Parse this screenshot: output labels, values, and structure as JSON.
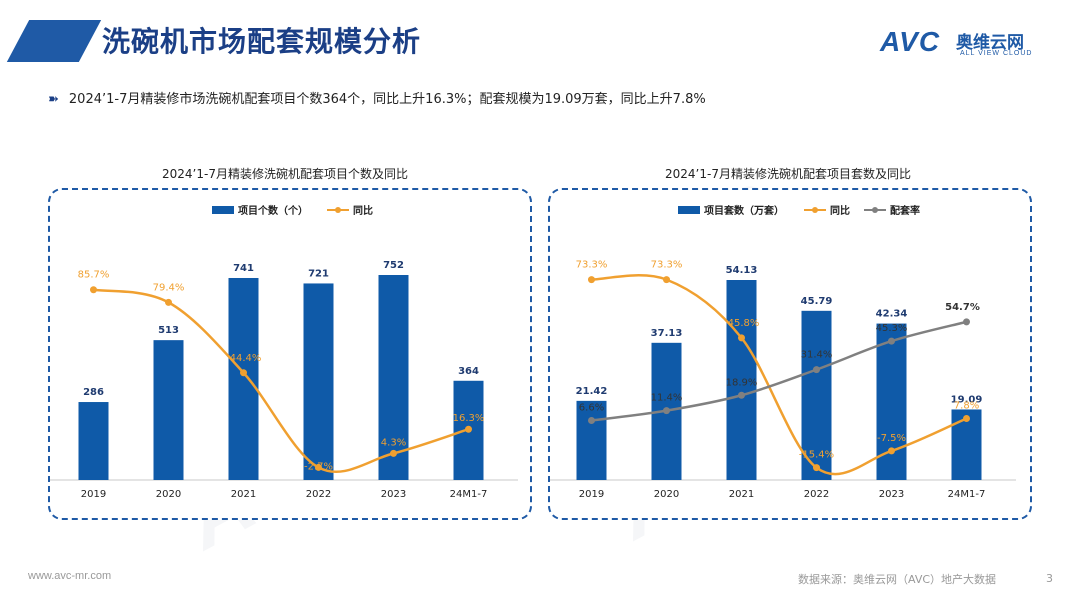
{
  "page": {
    "title": "洗碗机市场配套规模分析",
    "logo_main": "AVC",
    "logo_cn": "奥维云网",
    "logo_sub": "ALL VIEW CLOUD",
    "bullet": "2024’1-7月精装修市场洗碗机配套项目个数364个，同比上升16.3%；配套规模为19.09万套，同比上升7.8%",
    "footer_left": "www.avc-mr.com",
    "footer_source": "数据来源：奥维云网（AVC）地产大数据",
    "page_number": "3"
  },
  "colors": {
    "bar": "#0f5aa8",
    "yoy": "#f0a030",
    "rate": "#808080",
    "title": "#1b3f86"
  },
  "chart_data": [
    {
      "type": "bar",
      "title": "2024’1-7月精装修洗碗机配套项目个数及同比",
      "categories": [
        "2019",
        "2020",
        "2021",
        "2022",
        "2023",
        "24M1-7"
      ],
      "series": [
        {
          "name": "项目个数（个）",
          "type": "bar",
          "values": [
            286,
            513,
            741,
            721,
            752,
            364
          ],
          "labels": [
            "286",
            "513",
            "741",
            "721",
            "752",
            "364"
          ]
        },
        {
          "name": "同比",
          "type": "line",
          "values": [
            85.7,
            79.4,
            44.4,
            -2.7,
            4.3,
            16.3
          ],
          "labels": [
            "85.7%",
            "79.4%",
            "44.4%",
            "-2.7%",
            "4.3%",
            "16.3%"
          ]
        }
      ],
      "legend": "top"
    },
    {
      "type": "bar",
      "title": "2024’1-7月精装修洗碗机配套项目套数及同比",
      "categories": [
        "2019",
        "2020",
        "2021",
        "2022",
        "2023",
        "24M1-7"
      ],
      "series": [
        {
          "name": "项目套数（万套）",
          "type": "bar",
          "values": [
            21.42,
            37.13,
            54.13,
            45.79,
            42.34,
            19.09
          ],
          "labels": [
            "21.42",
            "37.13",
            "54.13",
            "45.79",
            "42.34",
            "19.09"
          ]
        },
        {
          "name": "同比",
          "type": "line",
          "values": [
            73.3,
            73.3,
            45.8,
            -15.4,
            -7.5,
            7.8
          ],
          "labels": [
            "73.3%",
            "73.3%",
            "45.8%",
            "-15.4%",
            "-7.5%",
            "7.8%"
          ]
        },
        {
          "name": "配套率",
          "type": "line",
          "values": [
            6.6,
            11.4,
            18.9,
            31.4,
            45.3,
            54.7
          ],
          "labels": [
            "6.6%",
            "11.4%",
            "18.9%",
            "31.4%",
            "45.3%",
            "54.7%"
          ]
        }
      ],
      "legend": "top"
    }
  ]
}
